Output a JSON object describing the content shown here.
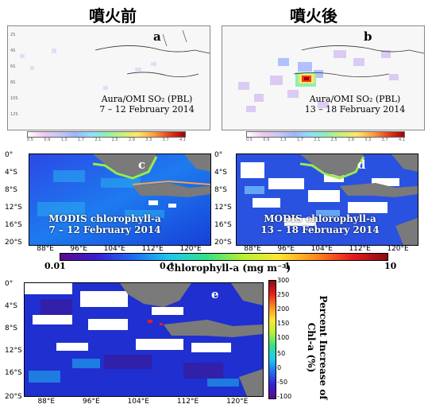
{
  "headers": {
    "before": "噴火前",
    "after": "噴火後"
  },
  "panels": {
    "a": {
      "letter": "a",
      "caption_line1": "Aura/OMI SO₂ (PBL)",
      "caption_line2": "7 – 12 February 2014",
      "colorbar_ticks": [
        "0.5",
        "0.9",
        "1.3",
        "1.7",
        "2.1",
        "2.5",
        "2.9",
        "3.3",
        "3.7",
        "4.1"
      ]
    },
    "b": {
      "letter": "b",
      "caption_line1": "Aura/OMI SO₂ (PBL)",
      "caption_line2": "13 – 18 February 2014",
      "colorbar_ticks": [
        "0.5",
        "0.9",
        "1.3",
        "1.7",
        "2.1",
        "2.5",
        "2.9",
        "3.3",
        "3.7",
        "4.1"
      ]
    },
    "c": {
      "letter": "c",
      "caption_line1": "MODIS chlorophyll-a",
      "caption_line2": "7 – 12 February 2014",
      "y_ticks": [
        "0°",
        "4°S",
        "8°S",
        "12°S",
        "16°S",
        "20°S"
      ],
      "x_ticks": [
        "88°E",
        "96°E",
        "104°E",
        "112°E",
        "120°E"
      ]
    },
    "d": {
      "letter": "d",
      "caption_line1": "MODIS chlorophyll-a",
      "caption_line2": "13 – 18 February 2014",
      "y_ticks": [
        "0°",
        "4°S",
        "8°S",
        "12°S",
        "16°S",
        "20°S"
      ],
      "x_ticks": [
        "88°E",
        "96°E",
        "104°E",
        "112°E",
        "120°E"
      ]
    },
    "e": {
      "letter": "e",
      "y_ticks": [
        "0°",
        "4°S",
        "8°S",
        "12°S",
        "16°S",
        "20°S"
      ],
      "x_ticks": [
        "88°E",
        "96°E",
        "104°E",
        "112°E",
        "120°E"
      ]
    }
  },
  "chl_colorbar": {
    "tick_labels": [
      "0.01",
      "0.1",
      "1",
      "10"
    ],
    "title": "Chlorophyll-a (mg m⁻³)"
  },
  "percent_colorbar": {
    "tick_labels": [
      "300",
      "250",
      "200",
      "150",
      "100",
      "50",
      "0",
      "-50",
      "-100"
    ],
    "title_line1": "Percent Increase of",
    "title_line2": "Chl-a (%)"
  },
  "colors": {
    "ocean_blue": "#1f3bd6",
    "land_gray": "#7a7a7a",
    "so2_low": "#d7c0f2",
    "so2_high": "#b40000"
  }
}
